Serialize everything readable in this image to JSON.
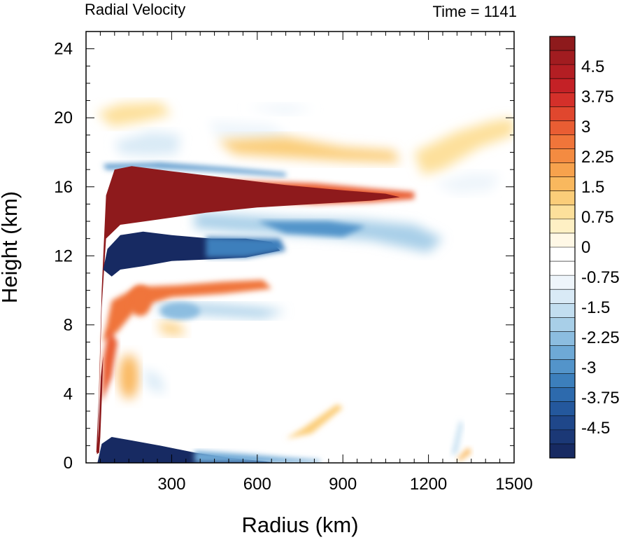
{
  "chart_data": {
    "type": "heatmap",
    "title": "Radial Velocity",
    "subtitle": "Time = 1141",
    "xlabel": "Radius (km)",
    "ylabel": "Height (km)",
    "xlim": [
      0,
      1500
    ],
    "ylim": [
      0,
      25
    ],
    "xticks": [
      "300",
      "600",
      "900",
      "1200",
      "1500"
    ],
    "xtick_values": [
      300,
      600,
      900,
      1200,
      1500
    ],
    "yticks": [
      "0",
      "4",
      "8",
      "12",
      "16",
      "20",
      "24"
    ],
    "ytick_values": [
      0,
      4,
      8,
      12,
      16,
      20,
      24
    ],
    "colorbar": {
      "labels": [
        "4.5",
        "3.75",
        "3",
        "2.25",
        "1.5",
        "0.75",
        "0",
        "-0.75",
        "-1.5",
        "-2.25",
        "-3",
        "-3.75",
        "-4.5"
      ],
      "label_values": [
        4.5,
        3.75,
        3,
        2.25,
        1.5,
        0.75,
        0,
        -0.75,
        -1.5,
        -2.25,
        -3,
        -3.75,
        -4.5
      ],
      "levels_min": -5.25,
      "levels_max": 5.25,
      "level_step": 0.375,
      "colors_high_to_low": [
        "#8e1a1c",
        "#a11c20",
        "#b31e23",
        "#c42126",
        "#d4302a",
        "#e0472e",
        "#e95d33",
        "#f0753a",
        "#f48b41",
        "#f7a24d",
        "#f9b85e",
        "#fbcd79",
        "#fde09b",
        "#fef0c4",
        "#fff8e6",
        "#ffffff",
        "#ffffff",
        "#eef5fb",
        "#d9eaf6",
        "#c2def0",
        "#a8cfe8",
        "#8cbde0",
        "#6ea9d6",
        "#5394ca",
        "#3c7fbc",
        "#2d6aad",
        "#24589d",
        "#1f478a",
        "#1b3876",
        "#172a62"
      ]
    },
    "features": [
      {
        "name": "upper outflow",
        "sign": "positive",
        "r_range": [
          40,
          1150
        ],
        "z_range": [
          14,
          17.2
        ],
        "peak": 5.25
      },
      {
        "name": "upper inflow",
        "sign": "negative",
        "r_range": [
          40,
          700
        ],
        "z_range": [
          11,
          13.5
        ],
        "peak": -5.25
      },
      {
        "name": "secondary inflow",
        "sign": "negative",
        "r_range": [
          400,
          1200
        ],
        "z_range": [
          12.5,
          14.5
        ],
        "peak": -2.0
      },
      {
        "name": "mid-level outflow",
        "sign": "positive",
        "r_range": [
          60,
          650
        ],
        "z_range": [
          7,
          10.5
        ],
        "peak": 2.8
      },
      {
        "name": "boundary layer inflow",
        "sign": "negative",
        "r_range": [
          40,
          650
        ],
        "z_range": [
          0,
          1.3
        ],
        "peak": -5.25
      },
      {
        "name": "low-level eyewall outflow",
        "sign": "positive",
        "r_range": [
          40,
          70
        ],
        "z_range": [
          0.5,
          7
        ],
        "peak": 5.25
      },
      {
        "name": "tropopause layer",
        "sign": "mixed",
        "r_range": [
          50,
          1500
        ],
        "z_range": [
          17,
          21
        ],
        "peak": 1.5
      }
    ]
  }
}
